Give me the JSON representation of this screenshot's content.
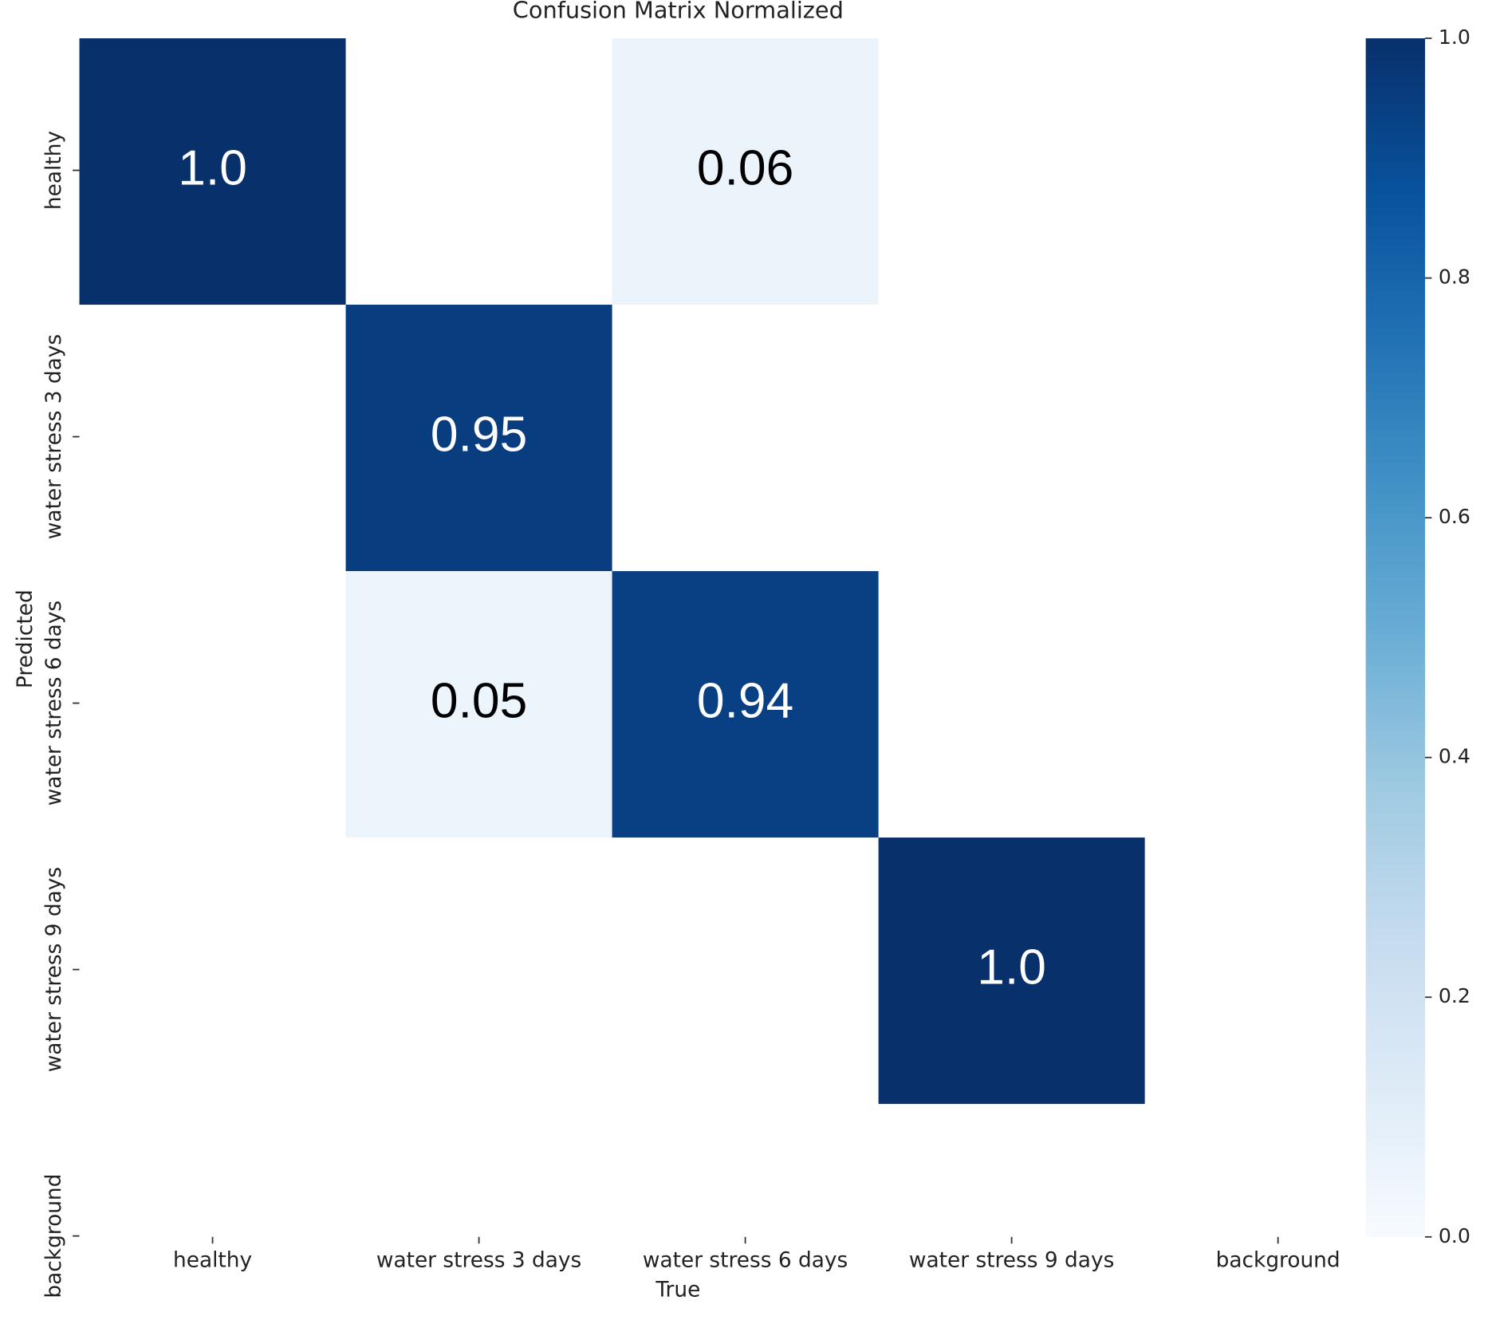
{
  "chart_data": {
    "type": "heatmap",
    "title": "Confusion Matrix Normalized",
    "xlabel": "True",
    "ylabel": "Predicted",
    "x_categories": [
      "healthy",
      "water stress 3 days",
      "water stress 6 days",
      "water stress 9 days",
      "background"
    ],
    "y_categories": [
      "healthy",
      "water stress 3 days",
      "water stress 6 days",
      "water stress 9 days",
      "background"
    ],
    "values": [
      [
        1,
        null,
        0.06,
        null,
        null
      ],
      [
        null,
        0.95,
        null,
        null,
        null
      ],
      [
        null,
        0.05,
        0.94,
        null,
        null
      ],
      [
        null,
        null,
        null,
        1,
        null
      ],
      [
        null,
        null,
        null,
        null,
        null
      ]
    ],
    "value_labels": [
      [
        "1.0",
        null,
        "0.06",
        null,
        null
      ],
      [
        null,
        "0.95",
        null,
        null,
        null
      ],
      [
        null,
        "0.05",
        "0.94",
        null,
        null
      ],
      [
        null,
        null,
        null,
        "1.0",
        null
      ],
      [
        null,
        null,
        null,
        null,
        null
      ]
    ],
    "colormap": "Blues",
    "clim": [
      0,
      1
    ],
    "cticks": [
      {
        "value": 0,
        "label": "0.0"
      },
      0.2,
      0.4,
      0.6,
      0.8,
      {
        "value": 1,
        "label": "1.0"
      }
    ]
  }
}
